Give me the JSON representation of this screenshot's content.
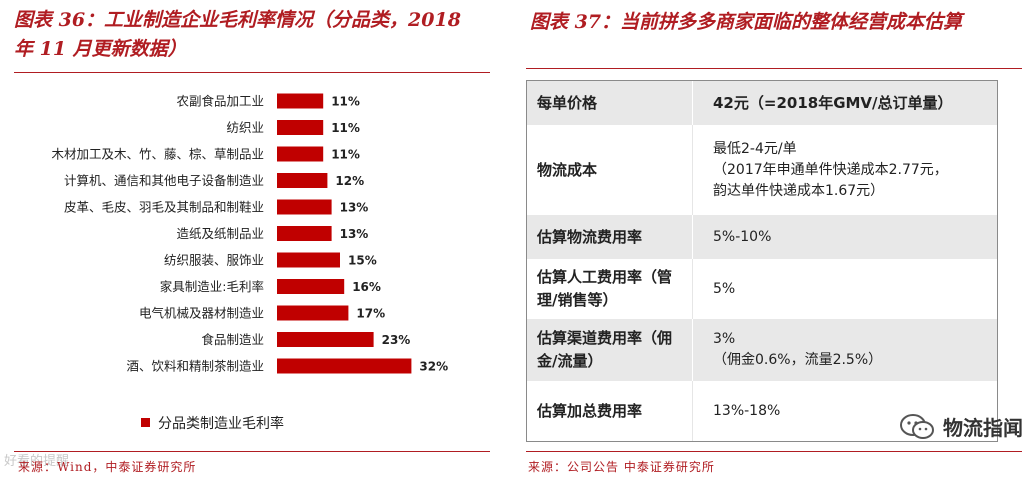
{
  "left": {
    "title": "图表 36：工业制造企业毛利率情况（分品类，2018 年 11 月更新数据）",
    "source": "来源：Wind，中泰证券研究所",
    "watermark": "好看的提醒"
  },
  "chart_data": {
    "type": "bar",
    "orientation": "horizontal",
    "title": "图表 36：工业制造企业毛利率情况（分品类，2018 年 11 月更新数据）",
    "categories": [
      "农副食品加工业",
      "纺织业",
      "木材加工及木、竹、藤、棕、草制品业",
      "计算机、通信和其他电子设备制造业",
      "皮革、毛皮、羽毛及其制品和制鞋业",
      "造纸及纸制品业",
      "纺织服装、服饰业",
      "家具制造业:毛利率",
      "电气机械及器材制造业",
      "食品制造业",
      "酒、饮料和精制茶制造业"
    ],
    "values": [
      11,
      11,
      11,
      12,
      13,
      13,
      15,
      16,
      17,
      23,
      32
    ],
    "value_labels": [
      "11%",
      "11%",
      "11%",
      "12%",
      "13%",
      "13%",
      "15%",
      "16%",
      "17%",
      "23%",
      "32%"
    ],
    "series_name": "分品类制造业毛利率",
    "legend": "bottom-left",
    "xlim": [
      0,
      35
    ],
    "color": "#c00000"
  },
  "right": {
    "title": "图表 37：当前拼多多商家面临的整体经营成本估算",
    "source": "来源：公司公告 中泰证券研究所",
    "brand": "物流指闻",
    "rows": [
      {
        "key": "每单价格",
        "lines": [
          "42元（=2018年GMV/总订单量）"
        ]
      },
      {
        "key": "物流成本",
        "lines": [
          "最低2-4元/单",
          "（2017年申通单件快递成本2.77元，",
          "韵达单件快递成本1.67元）"
        ]
      },
      {
        "key": "估算物流费用率",
        "lines": [
          "5%-10%"
        ]
      },
      {
        "key": "估算人工费用率（管理/销售等）",
        "lines": [
          "5%"
        ]
      },
      {
        "key": "估算渠道费用率（佣金/流量）",
        "lines": [
          "3%",
          "（佣金0.6%，流量2.5%）"
        ]
      },
      {
        "key": "估算加总费用率",
        "lines": [
          "13%-18%"
        ]
      }
    ]
  },
  "colors": {
    "accent": "#b01d22",
    "bar": "#c00000",
    "shade": "#e8e8e8"
  }
}
